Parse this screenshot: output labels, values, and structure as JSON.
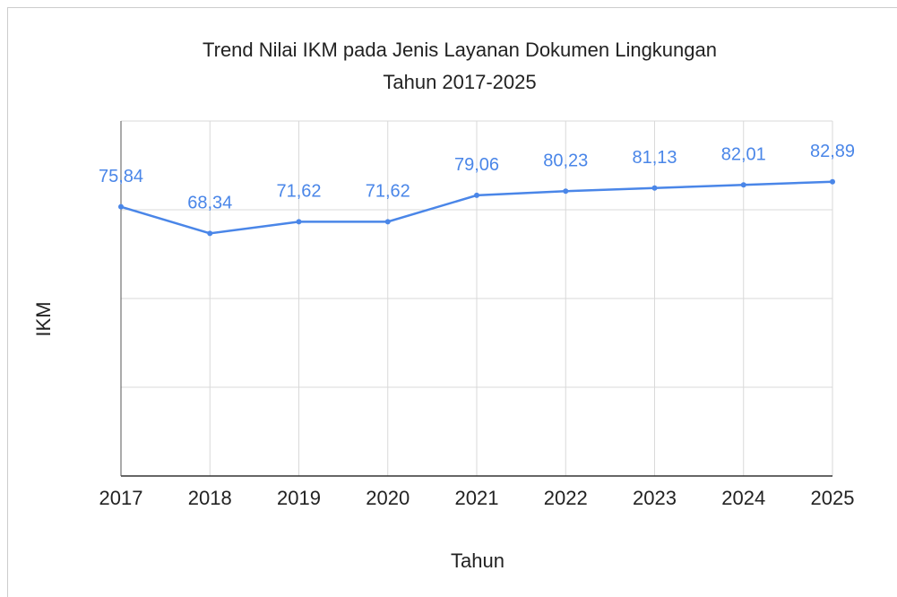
{
  "chart_data": {
    "type": "line",
    "title": [
      "Trend Nilai IKM pada Jenis Layanan Dokumen Lingkungan",
      "Tahun 2017-2025"
    ],
    "xlabel": "Tahun",
    "ylabel": "IKM",
    "categories": [
      "2017",
      "2018",
      "2019",
      "2020",
      "2021",
      "2022",
      "2023",
      "2024",
      "2025"
    ],
    "series": [
      {
        "name": "IKM",
        "color": "#4a86e8",
        "values": [
          75.84,
          68.34,
          71.62,
          71.62,
          79.06,
          80.23,
          81.13,
          82.01,
          82.89
        ],
        "value_labels": [
          "75,84",
          "68,34",
          "71,62",
          "71,62",
          "79,06",
          "80,23",
          "81,13",
          "82,01",
          "82,89"
        ]
      }
    ],
    "ylim": [
      0,
      100
    ],
    "yticks": [
      0,
      25,
      50,
      75,
      100
    ],
    "grid": true
  }
}
